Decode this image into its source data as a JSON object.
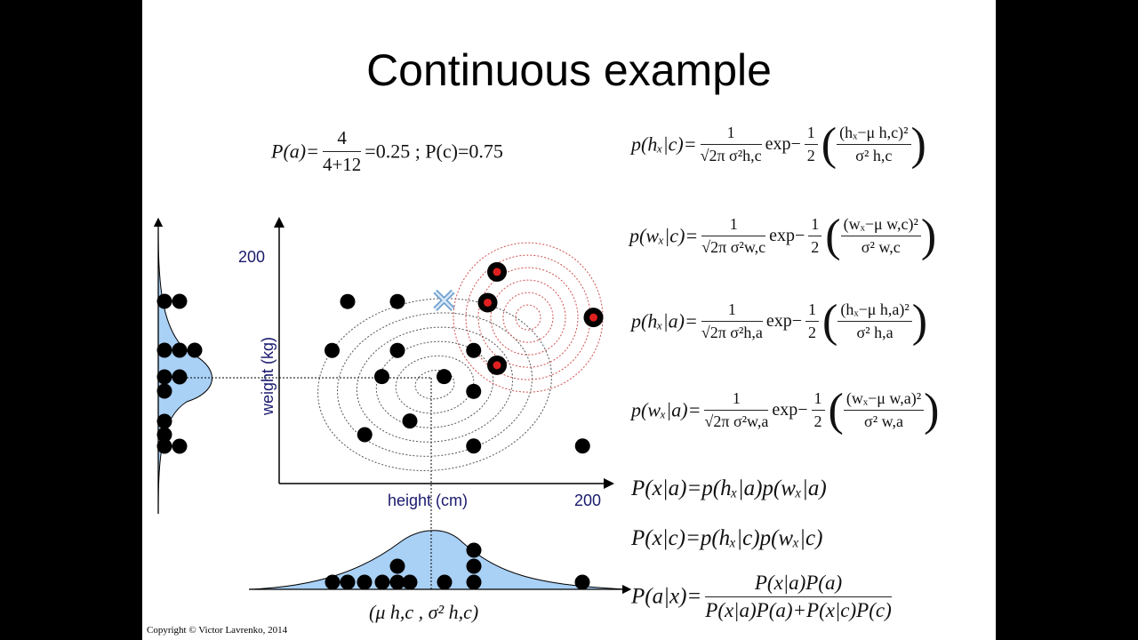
{
  "slide": {
    "title": "Continuous example",
    "copyright": "Copyright © Victor Lavrenko, 2014"
  },
  "priors": {
    "pa_lhs": "P(a)=",
    "pa_num": "4",
    "pa_den": "4+12",
    "pa_rhs": "=0.25 ; P(c)=0.75"
  },
  "likelihoods": [
    {
      "lhs": "p(hₓ|c)=",
      "num": "1",
      "den": "√2π σ²h,c",
      "mid": "exp−",
      "half_num": "1",
      "half_den": "2",
      "inner_num": "(hₓ−μ h,c)²",
      "inner_den": "σ² h,c"
    },
    {
      "lhs": "p(wₓ|c)=",
      "num": "1",
      "den": "√2π σ²w,c",
      "mid": "exp−",
      "half_num": "1",
      "half_den": "2",
      "inner_num": "(wₓ−μ w,c)²",
      "inner_den": "σ² w,c"
    },
    {
      "lhs": "p(hₓ|a)=",
      "num": "1",
      "den": "√2π σ²h,a",
      "mid": "exp−",
      "half_num": "1",
      "half_den": "2",
      "inner_num": "(hₓ−μ h,a)²",
      "inner_den": "σ² h,a"
    },
    {
      "lhs": "p(wₓ|a)=",
      "num": "1",
      "den": "√2π σ²w,a",
      "mid": "exp−",
      "half_num": "1",
      "half_den": "2",
      "inner_num": "(wₓ−μ w,a)²",
      "inner_den": "σ² w,a"
    }
  ],
  "joint": {
    "pxa": "P(x|a)=p(hₓ|a)p(wₓ|a)",
    "pxc": "P(x|c)=p(hₓ|c)p(wₓ|c)",
    "posterior_lhs": "P(a|x)=",
    "posterior_num": "P(x|a)P(a)",
    "posterior_den": "P(x|a)P(a)+P(x|c)P(c)"
  },
  "chart_data": {
    "type": "scatter",
    "xlabel": "height (cm)",
    "ylabel": "weight (kg)",
    "xtick_label": "200",
    "ytick_label": "200",
    "xlim": [
      0,
      200
    ],
    "ylim": [
      0,
      200
    ],
    "param_label": "(μ h,c , σ² h,c)",
    "series": [
      {
        "name": "c",
        "color": "#000000",
        "points": [
          [
            44,
            160
          ],
          [
            76,
            160
          ],
          [
            34,
            117
          ],
          [
            76,
            117
          ],
          [
            125,
            117
          ],
          [
            66,
            94
          ],
          [
            106,
            94
          ],
          [
            125,
            81
          ],
          [
            84,
            55
          ],
          [
            55,
            43
          ],
          [
            125,
            33
          ],
          [
            195,
            33
          ]
        ]
      },
      {
        "name": "a",
        "color": "#e02020",
        "points": [
          [
            140,
            186
          ],
          [
            134,
            159
          ],
          [
            202,
            146
          ],
          [
            140,
            104
          ]
        ]
      }
    ],
    "query_point": [
      106,
      161
    ],
    "class_c_mean": [
      100,
      87
    ],
    "class_a_mean": [
      160,
      146
    ],
    "colors": {
      "axis_text": "#1a1a6e",
      "density_fill": "#a9d0f5",
      "red_contour": "#d05050",
      "gray_contour": "#555555",
      "x_marker": "#6fa0d0"
    }
  }
}
